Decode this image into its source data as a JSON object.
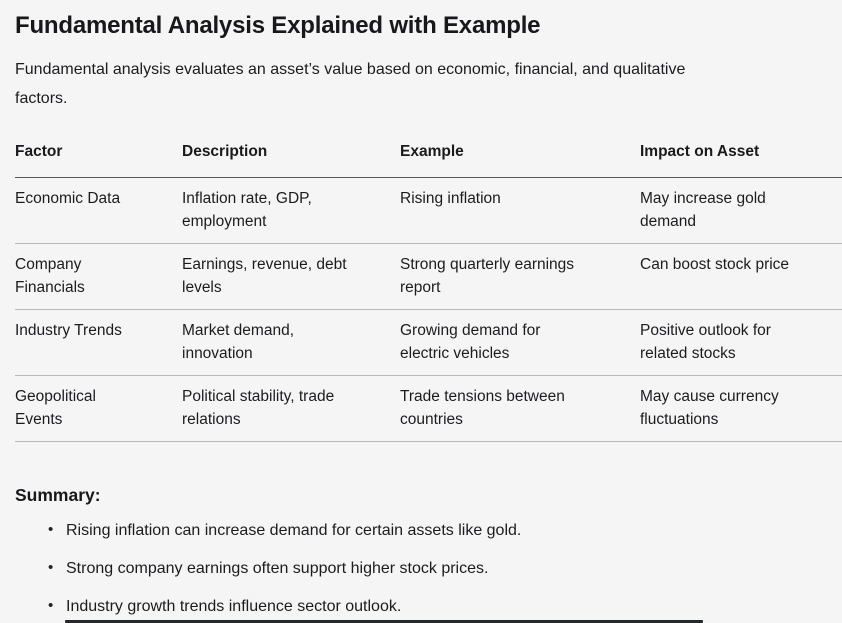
{
  "page": {
    "title": "Fundamental Analysis Explained with Example",
    "intro": "Fundamental analysis evaluates an asset’s value based on economic, financial, and qualitative\nfactors."
  },
  "table": {
    "columns": [
      "Factor",
      "Description",
      "Example",
      "Impact on Asset"
    ],
    "rows": [
      [
        "Economic Data",
        "Inflation rate, GDP,\nemployment",
        "Rising inflation",
        "May increase gold\ndemand"
      ],
      [
        "Company\nFinancials",
        "Earnings, revenue, debt\nlevels",
        "Strong quarterly earnings\nreport",
        "Can boost stock price"
      ],
      [
        "Industry Trends",
        "Market demand,\ninnovation",
        "Growing demand for\nelectric vehicles",
        "Positive outlook for\nrelated stocks"
      ],
      [
        "Geopolitical\nEvents",
        "Political stability, trade\nrelations",
        "Trade tensions between\ncountries",
        "May cause currency\nfluctuations"
      ]
    ]
  },
  "summary": {
    "heading": "Summary:",
    "bullets": [
      "Rising inflation can increase demand for certain assets like gold.",
      "Strong company earnings often support higher stock prices.",
      "Industry growth trends influence sector outlook."
    ]
  },
  "colors": {
    "background": "#f5f5f6",
    "text": "#1c1c1f",
    "header_rule": "#54565a",
    "row_rule": "#b8b9bc"
  }
}
